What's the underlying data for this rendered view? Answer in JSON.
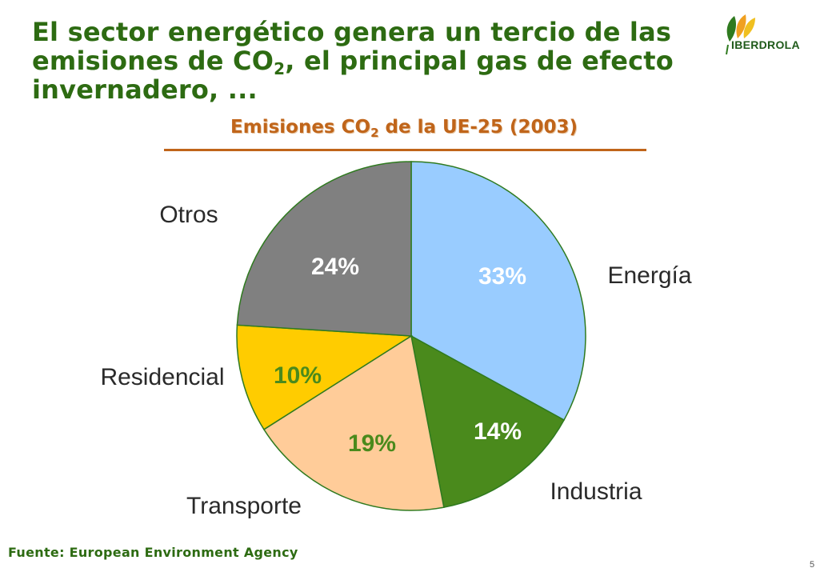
{
  "headline": {
    "line1": "El sector energético genera un tercio de las",
    "line2_pre": "emisiones de CO",
    "line2_sub": "2",
    "line2_post": ", el principal gas de efecto",
    "line3": "invernadero, ..."
  },
  "logo": {
    "text": "IBERDROLA"
  },
  "chart_data": {
    "type": "pie",
    "title_pre": "Emisiones CO",
    "title_sub": "2",
    "title_post": " de la UE-25 (2003)",
    "slices": [
      {
        "label": "Energía",
        "value": 33,
        "display": "33%",
        "color": "#99ccff",
        "pct_color": "#ffffff"
      },
      {
        "label": "Industria",
        "value": 14,
        "display": "14%",
        "color": "#4a8a1c",
        "pct_color": "#ffffff"
      },
      {
        "label": "Transporte",
        "value": 19,
        "display": "19%",
        "color": "#ffcc99",
        "pct_color": "#4a8a1c"
      },
      {
        "label": "Residencial",
        "value": 10,
        "display": "10%",
        "color": "#ffcc00",
        "pct_color": "#4a8a1c"
      },
      {
        "label": "Otros",
        "value": 24,
        "display": "24%",
        "color": "#808080",
        "pct_color": "#ffffff"
      }
    ]
  },
  "source": "Fuente: European Environment Agency",
  "page_number": "5"
}
